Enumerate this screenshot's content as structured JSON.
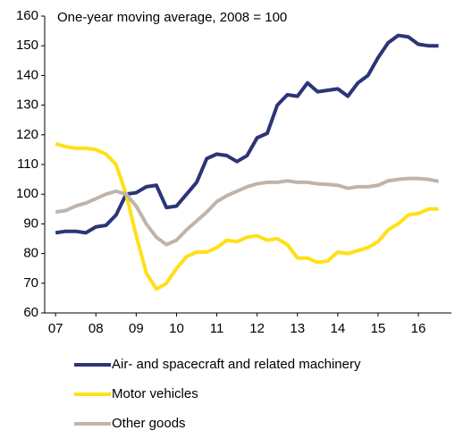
{
  "chart_data": {
    "type": "line",
    "annotation": "One-year moving average, 2008 = 100",
    "x": [
      7,
      7.25,
      7.5,
      7.75,
      8,
      8.25,
      8.5,
      8.75,
      9,
      9.25,
      9.5,
      9.75,
      10,
      10.25,
      10.5,
      10.75,
      11,
      11.25,
      11.5,
      11.75,
      12,
      12.25,
      12.5,
      12.75,
      13,
      13.25,
      13.5,
      13.75,
      14,
      14.25,
      14.5,
      14.75,
      15,
      15.25,
      15.5,
      15.75,
      16,
      16.25,
      16.5
    ],
    "series": [
      {
        "name": "Air- and spacecraft and related machinery",
        "color": "#2b3577",
        "values": [
          87,
          87.5,
          87.5,
          87,
          89,
          89.5,
          93,
          100,
          100.5,
          102.5,
          103,
          95.5,
          96,
          100,
          104,
          112,
          113.5,
          113,
          111,
          113,
          119,
          120.5,
          130,
          133.5,
          133,
          137.5,
          134.5,
          135,
          135.5,
          133,
          137.5,
          140,
          146,
          151,
          153.5,
          153,
          150.5,
          150,
          150
        ]
      },
      {
        "name": "Motor vehicles",
        "color": "#ffe017",
        "values": [
          117,
          116,
          115.5,
          115.5,
          115,
          113.5,
          110,
          100,
          86,
          73.5,
          68,
          70,
          75,
          79,
          80.5,
          80.5,
          82,
          84.5,
          84,
          85.5,
          86,
          84.5,
          85,
          83,
          78.5,
          78.5,
          77,
          77.5,
          80.5,
          80,
          81,
          82,
          84,
          88,
          90,
          93,
          93.5,
          95,
          95
        ]
      },
      {
        "name": "Other goods",
        "color": "#c0b4aa",
        "values": [
          94,
          94.5,
          96,
          97,
          98.5,
          100,
          101,
          100,
          96,
          90,
          85.5,
          83,
          84.5,
          88,
          91,
          94,
          97.5,
          99.5,
          101,
          102.5,
          103.5,
          104,
          104,
          104.5,
          104,
          104,
          103.5,
          103.3,
          103,
          102,
          102.5,
          102.5,
          103,
          104.5,
          105,
          105.3,
          105.3,
          105,
          104.3
        ]
      }
    ],
    "xlim": [
      6.73,
      16.82
    ],
    "xticks": [
      {
        "value": 7,
        "label": "07"
      },
      {
        "value": 8,
        "label": "08"
      },
      {
        "value": 9,
        "label": "09"
      },
      {
        "value": 10,
        "label": "10"
      },
      {
        "value": 11,
        "label": "11"
      },
      {
        "value": 12,
        "label": "12"
      },
      {
        "value": 13,
        "label": "13"
      },
      {
        "value": 14,
        "label": "14"
      },
      {
        "value": 15,
        "label": "15"
      },
      {
        "value": 16,
        "label": "16"
      }
    ],
    "ylim": [
      60,
      160
    ],
    "yticks": [
      60,
      70,
      80,
      90,
      100,
      110,
      120,
      130,
      140,
      150,
      160
    ]
  }
}
